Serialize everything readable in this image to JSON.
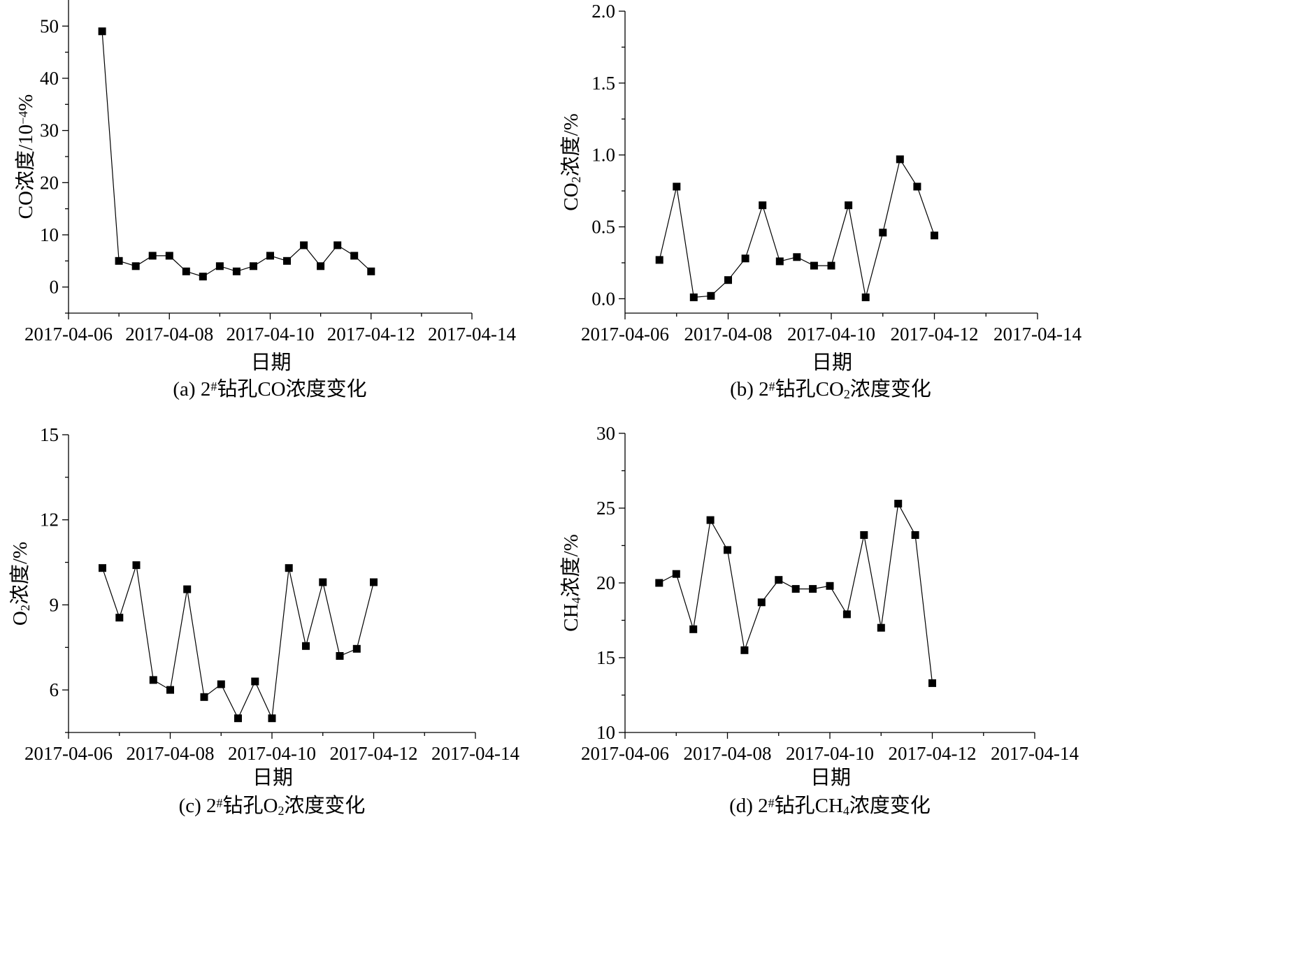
{
  "chart_data": [
    {
      "type": "line",
      "panel": "a",
      "caption": "(a) 2#钻孔CO浓度变化",
      "caption_parts": [
        "(a) 2",
        "#",
        "钻孔CO浓度变化"
      ],
      "ylabel": "CO浓度/10⁻⁴%",
      "ylabel_parts": [
        "CO浓度/10",
        "−4",
        "%"
      ],
      "xlabel": "日期",
      "x_ticks": [
        "2017-04-06",
        "2017-04-08",
        "2017-04-10",
        "2017-04-12",
        "2017-04-14"
      ],
      "xlim": [
        "2017-04-06",
        "2017-04-14"
      ],
      "y_ticks": [
        0,
        10,
        20,
        30,
        40,
        50
      ],
      "ylim": [
        -5,
        55
      ],
      "marker": "square",
      "series": [
        {
          "x": [
            "2017-04-06 16:00",
            "2017-04-07 00:00",
            "2017-04-07 08:00",
            "2017-04-07 16:00",
            "2017-04-08 00:00",
            "2017-04-08 08:00",
            "2017-04-08 16:00",
            "2017-04-09 00:00",
            "2017-04-09 08:00",
            "2017-04-09 16:00",
            "2017-04-10 00:00",
            "2017-04-10 08:00",
            "2017-04-10 16:00",
            "2017-04-11 00:00",
            "2017-04-11 08:00",
            "2017-04-11 16:00",
            "2017-04-12 00:00"
          ],
          "values": [
            49,
            5,
            4,
            6,
            6,
            3,
            2,
            4,
            3,
            4,
            6,
            5,
            8,
            4,
            8,
            6,
            3
          ]
        }
      ]
    },
    {
      "type": "line",
      "panel": "b",
      "caption": "(b) 2#钻孔CO₂浓度变化",
      "caption_parts": [
        "(b) 2",
        "#",
        "钻孔CO",
        "2",
        "浓度变化"
      ],
      "ylabel": "CO₂浓度/%",
      "ylabel_parts": [
        "CO",
        "2",
        "浓度/%"
      ],
      "xlabel": "日期",
      "x_ticks": [
        "2017-04-06",
        "2017-04-08",
        "2017-04-10",
        "2017-04-12",
        "2017-04-14"
      ],
      "xlim": [
        "2017-04-06",
        "2017-04-14"
      ],
      "y_ticks": [
        "0.0",
        "0.5",
        "1.0",
        "1.5",
        "2.0"
      ],
      "ylim": [
        -0.1,
        2.0
      ],
      "marker": "square",
      "series": [
        {
          "x": [
            "2017-04-06 16:00",
            "2017-04-07 00:00",
            "2017-04-07 08:00",
            "2017-04-07 16:00",
            "2017-04-08 00:00",
            "2017-04-08 08:00",
            "2017-04-08 16:00",
            "2017-04-09 00:00",
            "2017-04-09 08:00",
            "2017-04-09 16:00",
            "2017-04-10 00:00",
            "2017-04-10 08:00",
            "2017-04-10 16:00",
            "2017-04-11 00:00",
            "2017-04-11 08:00",
            "2017-04-11 16:00",
            "2017-04-12 00:00"
          ],
          "values": [
            0.27,
            0.78,
            0.01,
            0.02,
            0.13,
            0.28,
            0.65,
            0.26,
            0.29,
            0.23,
            0.23,
            0.65,
            0.01,
            0.46,
            0.97,
            0.78,
            0.44
          ]
        }
      ]
    },
    {
      "type": "line",
      "panel": "c",
      "caption": "(c) 2#钻孔O₂浓度变化",
      "caption_parts": [
        "(c) 2",
        "#",
        "钻孔O",
        "2",
        "浓度变化"
      ],
      "ylabel": "O₂浓度/%",
      "ylabel_parts": [
        "O",
        "2",
        "浓度/%"
      ],
      "xlabel": "日期",
      "x_ticks": [
        "2017-04-06",
        "2017-04-08",
        "2017-04-10",
        "2017-04-12",
        "2017-04-14"
      ],
      "xlim": [
        "2017-04-06",
        "2017-04-14"
      ],
      "y_ticks": [
        6,
        9,
        12,
        15
      ],
      "ylim": [
        4.5,
        15
      ],
      "marker": "square",
      "series": [
        {
          "x": [
            "2017-04-06 16:00",
            "2017-04-07 00:00",
            "2017-04-07 08:00",
            "2017-04-07 16:00",
            "2017-04-08 00:00",
            "2017-04-08 08:00",
            "2017-04-08 16:00",
            "2017-04-09 00:00",
            "2017-04-09 08:00",
            "2017-04-09 16:00",
            "2017-04-10 00:00",
            "2017-04-10 08:00",
            "2017-04-10 16:00",
            "2017-04-11 00:00",
            "2017-04-11 08:00",
            "2017-04-11 16:00",
            "2017-04-12 00:00"
          ],
          "values": [
            10.3,
            8.55,
            10.4,
            6.35,
            6.0,
            9.55,
            5.75,
            6.2,
            5.0,
            6.3,
            5.0,
            10.3,
            7.55,
            9.8,
            7.2,
            7.45,
            9.8
          ]
        }
      ]
    },
    {
      "type": "line",
      "panel": "d",
      "caption": "(d) 2#钻孔CH₄浓度变化",
      "caption_parts": [
        "(d) 2",
        "#",
        "钻孔CH",
        "4",
        "浓度变化"
      ],
      "ylabel": "CH₄浓度/%",
      "ylabel_parts": [
        "CH",
        "4",
        "浓度/%"
      ],
      "xlabel": "日期",
      "x_ticks": [
        "2017-04-06",
        "2017-04-08",
        "2017-04-10",
        "2017-04-12",
        "2017-04-14"
      ],
      "xlim": [
        "2017-04-06",
        "2017-04-14"
      ],
      "y_ticks": [
        10,
        15,
        20,
        25,
        30
      ],
      "ylim": [
        10,
        30
      ],
      "marker": "square",
      "series": [
        {
          "x": [
            "2017-04-06 16:00",
            "2017-04-07 00:00",
            "2017-04-07 08:00",
            "2017-04-07 16:00",
            "2017-04-08 00:00",
            "2017-04-08 08:00",
            "2017-04-08 16:00",
            "2017-04-09 00:00",
            "2017-04-09 08:00",
            "2017-04-09 16:00",
            "2017-04-10 00:00",
            "2017-04-10 08:00",
            "2017-04-10 16:00",
            "2017-04-11 00:00",
            "2017-04-11 08:00",
            "2017-04-11 16:00",
            "2017-04-12 00:00"
          ],
          "values": [
            20.0,
            20.6,
            16.9,
            24.2,
            22.2,
            15.5,
            18.7,
            20.2,
            19.6,
            19.6,
            19.8,
            17.9,
            23.2,
            17.0,
            25.3,
            23.2,
            13.3
          ]
        }
      ]
    }
  ]
}
